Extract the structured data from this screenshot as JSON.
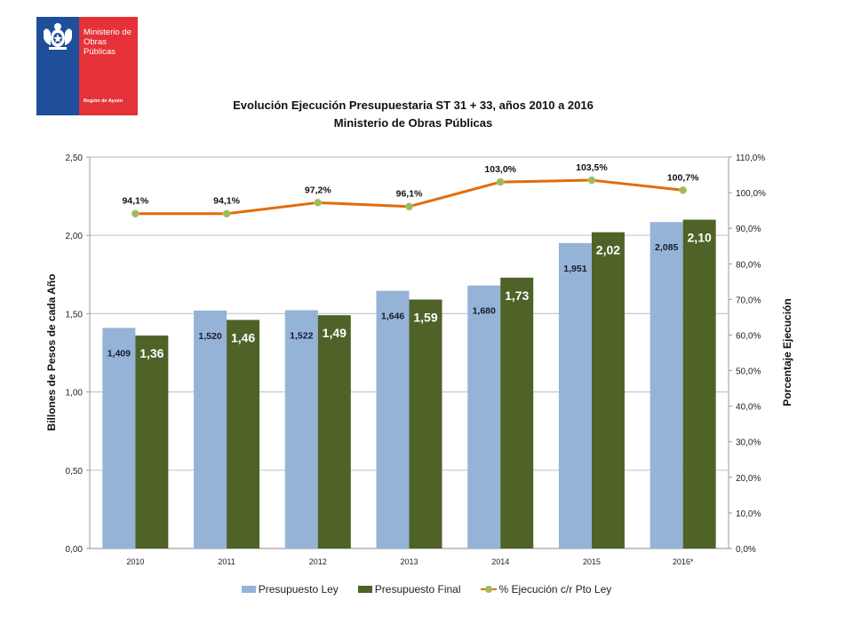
{
  "logo": {
    "name_line1": "Ministerio de",
    "name_line2": "Obras Públicas",
    "region": "Región de Aysén",
    "colors": {
      "blue": "#1f4e9b",
      "red": "#e53238"
    }
  },
  "chart_data": {
    "type": "bar",
    "title": "Evolución Ejecución Presupuestaria ST 31 + 33, años 2010 a 2016",
    "subtitle": "Ministerio de Obras Públicas",
    "categories": [
      "2010",
      "2011",
      "2012",
      "2013",
      "2014",
      "2015",
      "2016*"
    ],
    "ylabel": "Billones de Pesos de cada Año",
    "y2label": "Porcentaje Ejecución",
    "ylim": [
      0,
      2.5
    ],
    "y2lim": [
      0,
      110
    ],
    "yticks": [
      "0,00",
      "0,50",
      "1,00",
      "1,50",
      "2,00",
      "2,50"
    ],
    "y2ticks": [
      "0,0%",
      "10,0%",
      "20,0%",
      "30,0%",
      "40,0%",
      "50,0%",
      "60,0%",
      "70,0%",
      "80,0%",
      "90,0%",
      "100,0%",
      "110,0%"
    ],
    "grid": true,
    "legend_position": "bottom",
    "series": [
      {
        "name": "Presupuesto Ley",
        "type": "bar",
        "axis": "left",
        "color": "#95b3d7",
        "values": [
          1.409,
          1.52,
          1.522,
          1.646,
          1.68,
          1.951,
          2.085
        ],
        "labels": [
          "1,409",
          "1,520",
          "1,522",
          "1,646",
          "1,680",
          "1,951",
          "2,085"
        ]
      },
      {
        "name": "Presupuesto Final",
        "type": "bar",
        "axis": "left",
        "color": "#4f6228",
        "values": [
          1.36,
          1.46,
          1.49,
          1.59,
          1.73,
          2.02,
          2.1
        ],
        "labels": [
          "1,36",
          "1,46",
          "1,49",
          "1,59",
          "1,73",
          "2,02",
          "2,10"
        ]
      },
      {
        "name": "% Ejecución c/r Pto Ley",
        "type": "line",
        "axis": "right",
        "color": "#e36c0a",
        "marker_color": "#9bbb59",
        "values": [
          94.1,
          94.1,
          97.2,
          96.1,
          103.0,
          103.5,
          100.7
        ],
        "labels": [
          "94,1%",
          "94,1%",
          "97,2%",
          "96,1%",
          "103,0%",
          "103,5%",
          "100,7%"
        ]
      }
    ]
  }
}
